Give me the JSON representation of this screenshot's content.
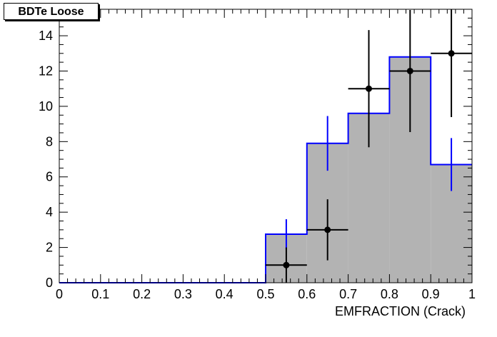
{
  "chart_data": {
    "type": "bar",
    "title": "BDTe Loose",
    "xlabel": "EMFRACTION (Crack)",
    "ylabel": "",
    "xlim": [
      0,
      1
    ],
    "ylim": [
      0,
      15.5
    ],
    "x_ticks": [
      "0",
      "0.1",
      "0.2",
      "0.3",
      "0.4",
      "0.5",
      "0.6",
      "0.7",
      "0.8",
      "0.9",
      "1"
    ],
    "y_ticks": [
      "0",
      "2",
      "4",
      "6",
      "8",
      "10",
      "12",
      "14"
    ],
    "bin_edges": [
      0,
      0.1,
      0.2,
      0.3,
      0.4,
      0.5,
      0.6,
      0.7,
      0.8,
      0.9,
      1.0
    ],
    "series": [
      {
        "style": "filled-histogram",
        "values": [
          0,
          0,
          0,
          0,
          0,
          2.75,
          7.9,
          9.6,
          12.8,
          6.7
        ],
        "errors": [
          0,
          0,
          0,
          0,
          0,
          0.85,
          1.55,
          0,
          0,
          1.5
        ],
        "color": "#0000ff",
        "fill": "#b3b3b3"
      },
      {
        "style": "points-with-errors",
        "x": [
          0.55,
          0.65,
          0.75,
          0.85,
          0.95
        ],
        "values": [
          1,
          3,
          11,
          12,
          13
        ],
        "errors": [
          1,
          1.73,
          3.32,
          3.46,
          3.61
        ],
        "color": "#000000"
      }
    ]
  }
}
